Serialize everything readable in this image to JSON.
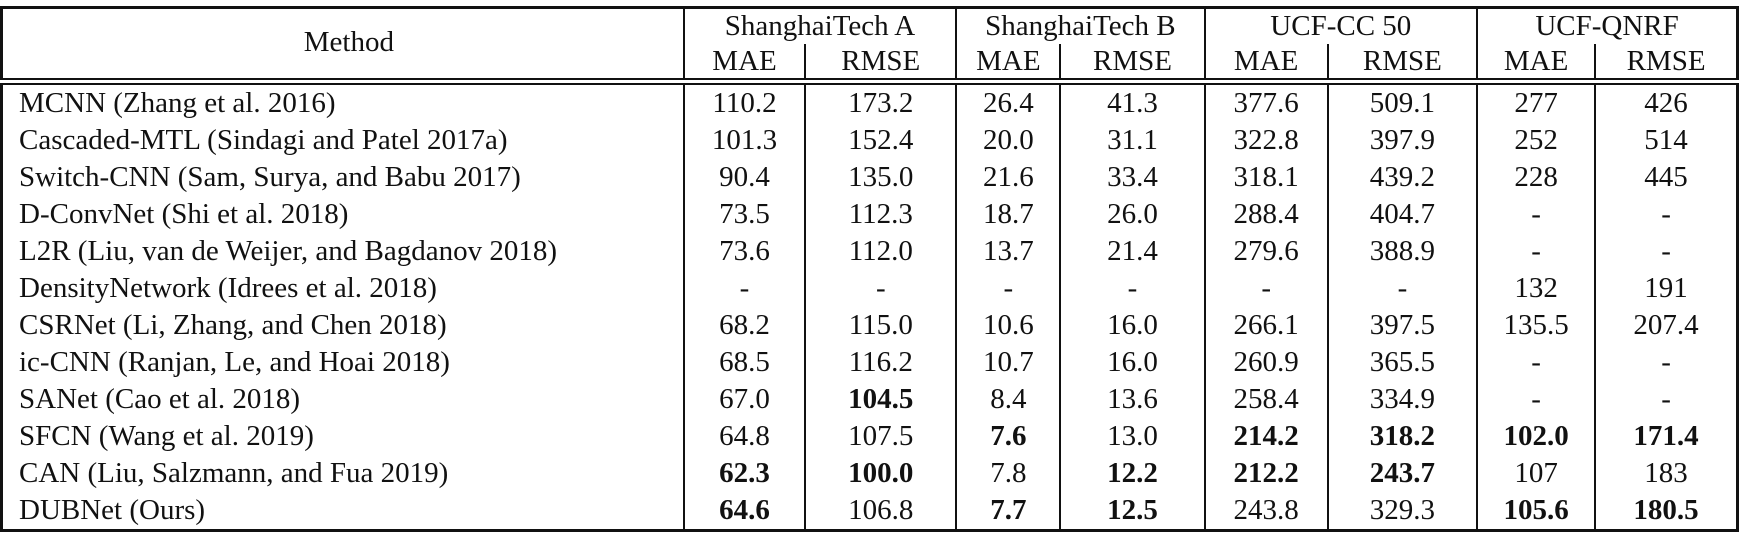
{
  "colors": {
    "text": "#111111",
    "border": "#111111",
    "background": "#ffffff"
  },
  "table": {
    "method_header": "Method",
    "groups": [
      {
        "label": "ShanghaiTech A",
        "cols": [
          "MAE",
          "RMSE"
        ]
      },
      {
        "label": "ShanghaiTech B",
        "cols": [
          "MAE",
          "RMSE"
        ]
      },
      {
        "label": "UCF-CC 50",
        "cols": [
          "MAE",
          "RMSE"
        ]
      },
      {
        "label": "UCF-QNRF",
        "cols": [
          "MAE",
          "RMSE"
        ]
      }
    ],
    "rows": [
      {
        "method": "MCNN (Zhang et al. 2016)",
        "values": [
          {
            "text": "110.2",
            "bold": false
          },
          {
            "text": "173.2",
            "bold": false
          },
          {
            "text": "26.4",
            "bold": false
          },
          {
            "text": "41.3",
            "bold": false
          },
          {
            "text": "377.6",
            "bold": false
          },
          {
            "text": "509.1",
            "bold": false
          },
          {
            "text": "277",
            "bold": false
          },
          {
            "text": "426",
            "bold": false
          }
        ]
      },
      {
        "method": "Cascaded-MTL (Sindagi and Patel 2017a)",
        "values": [
          {
            "text": "101.3",
            "bold": false
          },
          {
            "text": "152.4",
            "bold": false
          },
          {
            "text": "20.0",
            "bold": false
          },
          {
            "text": "31.1",
            "bold": false
          },
          {
            "text": "322.8",
            "bold": false
          },
          {
            "text": "397.9",
            "bold": false
          },
          {
            "text": "252",
            "bold": false
          },
          {
            "text": "514",
            "bold": false
          }
        ]
      },
      {
        "method": "Switch-CNN (Sam, Surya, and Babu 2017)",
        "values": [
          {
            "text": "90.4",
            "bold": false
          },
          {
            "text": "135.0",
            "bold": false
          },
          {
            "text": "21.6",
            "bold": false
          },
          {
            "text": "33.4",
            "bold": false
          },
          {
            "text": "318.1",
            "bold": false
          },
          {
            "text": "439.2",
            "bold": false
          },
          {
            "text": "228",
            "bold": false
          },
          {
            "text": "445",
            "bold": false
          }
        ]
      },
      {
        "method": "D-ConvNet (Shi et al. 2018)",
        "values": [
          {
            "text": "73.5",
            "bold": false
          },
          {
            "text": "112.3",
            "bold": false
          },
          {
            "text": "18.7",
            "bold": false
          },
          {
            "text": "26.0",
            "bold": false
          },
          {
            "text": "288.4",
            "bold": false
          },
          {
            "text": "404.7",
            "bold": false
          },
          {
            "text": "-",
            "bold": false
          },
          {
            "text": "-",
            "bold": false
          }
        ]
      },
      {
        "method": "L2R (Liu, van de Weijer, and Bagdanov 2018)",
        "values": [
          {
            "text": "73.6",
            "bold": false
          },
          {
            "text": "112.0",
            "bold": false
          },
          {
            "text": "13.7",
            "bold": false
          },
          {
            "text": "21.4",
            "bold": false
          },
          {
            "text": "279.6",
            "bold": false
          },
          {
            "text": "388.9",
            "bold": false
          },
          {
            "text": "-",
            "bold": false
          },
          {
            "text": "-",
            "bold": false
          }
        ]
      },
      {
        "method": "DensityNetwork (Idrees et al. 2018)",
        "values": [
          {
            "text": "-",
            "bold": false
          },
          {
            "text": "-",
            "bold": false
          },
          {
            "text": "-",
            "bold": false
          },
          {
            "text": "-",
            "bold": false
          },
          {
            "text": "-",
            "bold": false
          },
          {
            "text": "-",
            "bold": false
          },
          {
            "text": "132",
            "bold": false
          },
          {
            "text": "191",
            "bold": false
          }
        ]
      },
      {
        "method": "CSRNet (Li, Zhang, and Chen 2018)",
        "values": [
          {
            "text": "68.2",
            "bold": false
          },
          {
            "text": "115.0",
            "bold": false
          },
          {
            "text": "10.6",
            "bold": false
          },
          {
            "text": "16.0",
            "bold": false
          },
          {
            "text": "266.1",
            "bold": false
          },
          {
            "text": "397.5",
            "bold": false
          },
          {
            "text": "135.5",
            "bold": false
          },
          {
            "text": "207.4",
            "bold": false
          }
        ]
      },
      {
        "method": "ic-CNN (Ranjan, Le, and Hoai 2018)",
        "values": [
          {
            "text": "68.5",
            "bold": false
          },
          {
            "text": "116.2",
            "bold": false
          },
          {
            "text": "10.7",
            "bold": false
          },
          {
            "text": "16.0",
            "bold": false
          },
          {
            "text": "260.9",
            "bold": false
          },
          {
            "text": "365.5",
            "bold": false
          },
          {
            "text": "-",
            "bold": false
          },
          {
            "text": "-",
            "bold": false
          }
        ]
      },
      {
        "method": "SANet (Cao et al. 2018)",
        "values": [
          {
            "text": "67.0",
            "bold": false
          },
          {
            "text": "104.5",
            "bold": true
          },
          {
            "text": "8.4",
            "bold": false
          },
          {
            "text": "13.6",
            "bold": false
          },
          {
            "text": "258.4",
            "bold": false
          },
          {
            "text": "334.9",
            "bold": false
          },
          {
            "text": "-",
            "bold": false
          },
          {
            "text": "-",
            "bold": false
          }
        ]
      },
      {
        "method": "SFCN (Wang et al. 2019)",
        "values": [
          {
            "text": "64.8",
            "bold": false
          },
          {
            "text": "107.5",
            "bold": false
          },
          {
            "text": "7.6",
            "bold": true
          },
          {
            "text": "13.0",
            "bold": false
          },
          {
            "text": "214.2",
            "bold": true
          },
          {
            "text": "318.2",
            "bold": true
          },
          {
            "text": "102.0",
            "bold": true
          },
          {
            "text": "171.4",
            "bold": true
          }
        ]
      },
      {
        "method": "CAN (Liu, Salzmann, and Fua 2019)",
        "values": [
          {
            "text": "62.3",
            "bold": true
          },
          {
            "text": "100.0",
            "bold": true
          },
          {
            "text": "7.8",
            "bold": false
          },
          {
            "text": "12.2",
            "bold": true
          },
          {
            "text": "212.2",
            "bold": true
          },
          {
            "text": "243.7",
            "bold": true
          },
          {
            "text": "107",
            "bold": false
          },
          {
            "text": "183",
            "bold": false
          }
        ]
      },
      {
        "method": "DUBNet (Ours)",
        "values": [
          {
            "text": "64.6",
            "bold": true
          },
          {
            "text": "106.8",
            "bold": false
          },
          {
            "text": "7.7",
            "bold": true
          },
          {
            "text": "12.5",
            "bold": true
          },
          {
            "text": "243.8",
            "bold": false
          },
          {
            "text": "329.3",
            "bold": false
          },
          {
            "text": "105.6",
            "bold": true
          },
          {
            "text": "180.5",
            "bold": true
          }
        ]
      }
    ]
  }
}
